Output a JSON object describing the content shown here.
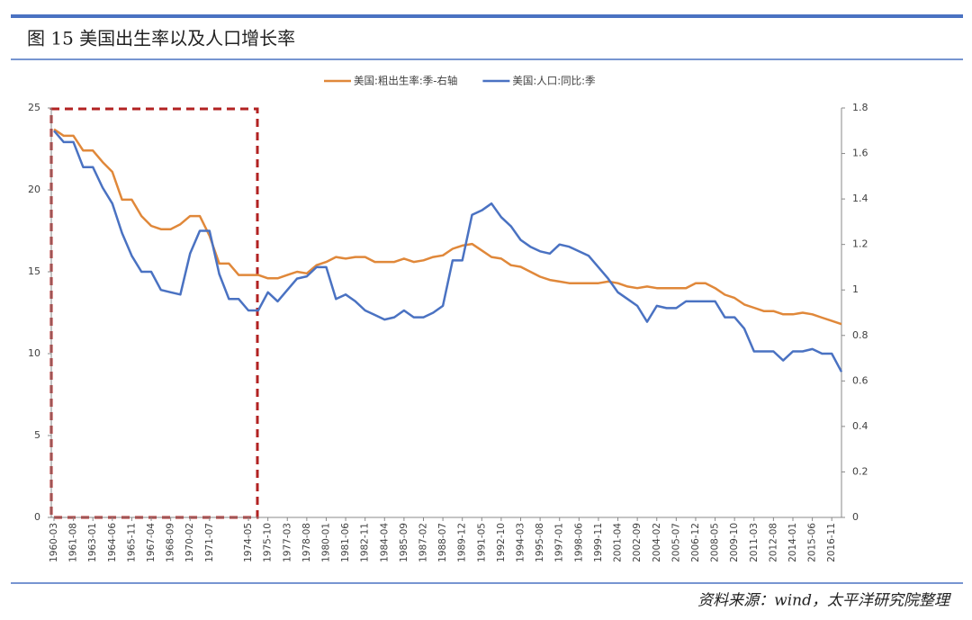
{
  "chart_data": {
    "type": "line",
    "title": "图 15   美国出生率以及人口增长率",
    "source": "资料来源：wind，太平洋研究院整理",
    "legend": "top",
    "categories": [
      "1960-03",
      null,
      "1961-08",
      null,
      "1963-01",
      null,
      "1964-06",
      null,
      "1965-11",
      null,
      "1967-04",
      null,
      "1968-09",
      null,
      "1970-02",
      null,
      "1971-07",
      null,
      null,
      null,
      "1974-05",
      null,
      "1975-10",
      null,
      "1977-03",
      null,
      "1978-08",
      null,
      "1980-01",
      null,
      "1981-06",
      null,
      "1982-11",
      null,
      "1984-04",
      null,
      "1985-09",
      null,
      "1987-02",
      null,
      "1988-07",
      null,
      "1989-12",
      null,
      "1991-05",
      null,
      "1992-10",
      null,
      "1994-03",
      null,
      "1995-08",
      null,
      "1997-01",
      null,
      "1998-06",
      null,
      "1999-11",
      null,
      "2001-04",
      null,
      "2002-09",
      null,
      "2004-02",
      null,
      "2005-07",
      null,
      "2006-12",
      null,
      "2008-05",
      null,
      "2009-10",
      null,
      "2011-03",
      null,
      "2012-08",
      null,
      "2014-01",
      null,
      "2015-06",
      null,
      "2016-11",
      null
    ],
    "series": [
      {
        "name": "美国:粗出生率:季-右轴",
        "color": "#e0883a",
        "values": [
          23.7,
          23.3,
          23.3,
          22.4,
          22.4,
          21.7,
          21.1,
          19.4,
          19.4,
          18.4,
          17.8,
          17.6,
          17.6,
          17.9,
          18.4,
          18.4,
          17.2,
          15.5,
          15.5,
          14.8,
          14.8,
          14.8,
          14.6,
          14.6,
          14.8,
          15.0,
          14.9,
          15.4,
          15.6,
          15.9,
          15.8,
          15.9,
          15.9,
          15.6,
          15.6,
          15.6,
          15.8,
          15.6,
          15.7,
          15.9,
          16.0,
          16.4,
          16.6,
          16.7,
          16.3,
          15.9,
          15.8,
          15.4,
          15.3,
          15.0,
          14.7,
          14.5,
          14.4,
          14.3,
          14.3,
          14.3,
          14.3,
          14.4,
          14.3,
          14.1,
          14.0,
          14.1,
          14.0,
          14.0,
          14.0,
          14.0,
          14.3,
          14.3,
          14.0,
          13.6,
          13.4,
          13.0,
          12.8,
          12.6,
          12.6,
          12.4,
          12.4,
          12.5,
          12.4,
          12.2,
          12.0,
          11.8
        ]
      },
      {
        "name": "美国:人口:同比:季",
        "color": "#4a72c2",
        "axis": "y2",
        "values": [
          1.7,
          1.65,
          1.65,
          1.54,
          1.54,
          1.45,
          1.38,
          1.25,
          1.15,
          1.08,
          1.08,
          1.0,
          0.99,
          0.98,
          1.16,
          1.26,
          1.26,
          1.07,
          0.96,
          0.96,
          0.91,
          0.91,
          0.99,
          0.95,
          1.0,
          1.05,
          1.06,
          1.1,
          1.1,
          0.96,
          0.98,
          0.95,
          0.91,
          0.89,
          0.87,
          0.88,
          0.91,
          0.88,
          0.88,
          0.9,
          0.93,
          1.13,
          1.13,
          1.33,
          1.35,
          1.38,
          1.32,
          1.28,
          1.22,
          1.19,
          1.17,
          1.16,
          1.2,
          1.19,
          1.17,
          1.15,
          1.1,
          1.05,
          0.99,
          0.96,
          0.93,
          0.86,
          0.93,
          0.92,
          0.92,
          0.95,
          0.95,
          0.95,
          0.95,
          0.88,
          0.88,
          0.83,
          0.73,
          0.73,
          0.73,
          0.69,
          0.73,
          0.73,
          0.74,
          0.72,
          0.72,
          0.64
        ]
      }
    ],
    "ylim": [
      0,
      25
    ],
    "yticks": [
      0,
      5,
      10,
      15,
      20,
      25
    ],
    "y2lim": [
      0,
      1.8
    ],
    "y2ticks": [
      0,
      0.2,
      0.4,
      0.6,
      0.8,
      1,
      1.2,
      1.4,
      1.6,
      1.8
    ]
  }
}
